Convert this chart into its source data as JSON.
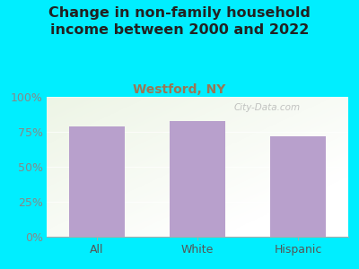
{
  "title": "Change in non-family household\nincome between 2000 and 2022",
  "subtitle": "Westford, NY",
  "categories": [
    "All",
    "White",
    "Hispanic"
  ],
  "values": [
    79,
    83,
    72
  ],
  "bar_color": "#b8a0cc",
  "background_color": "#00eeff",
  "plot_bg_topleft": "#d4edcc",
  "plot_bg_right": "#f0f0ee",
  "title_color": "#222222",
  "subtitle_color": "#997755",
  "tick_label_color": "#888888",
  "xlabel_color": "#555555",
  "ylim": [
    0,
    100
  ],
  "yticks": [
    0,
    25,
    50,
    75,
    100
  ],
  "ytick_labels": [
    "0%",
    "25%",
    "50%",
    "75%",
    "100%"
  ],
  "title_fontsize": 11.5,
  "subtitle_fontsize": 10,
  "tick_fontsize": 9,
  "bar_width": 0.55,
  "watermark": "City-Data.com"
}
